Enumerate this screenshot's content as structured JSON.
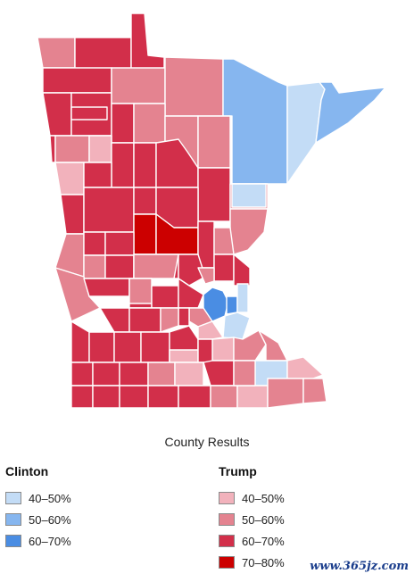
{
  "map": {
    "state": "Minnesota",
    "counties": [
      {
        "id": "c01",
        "color": "#e48390"
      },
      {
        "id": "c02",
        "color": "#d22f4a"
      },
      {
        "id": "c03",
        "color": "#d22f4a"
      },
      {
        "id": "c04",
        "color": "#d22f4a"
      },
      {
        "id": "c05",
        "color": "#d22f4a"
      },
      {
        "id": "c06",
        "color": "#d22f4a"
      },
      {
        "id": "c07",
        "color": "#e48390"
      },
      {
        "id": "c08",
        "color": "#e48390"
      },
      {
        "id": "c09",
        "color": "#86b6ef"
      },
      {
        "id": "c10",
        "color": "#c3dcf6"
      },
      {
        "id": "c11",
        "color": "#86b6ef"
      },
      {
        "id": "c12",
        "color": "#d22f4a"
      },
      {
        "id": "c13",
        "color": "#e48390"
      },
      {
        "id": "c14",
        "color": "#d22f4a"
      },
      {
        "id": "c15",
        "color": "#e48390"
      },
      {
        "id": "c16",
        "color": "#e48390"
      },
      {
        "id": "c17",
        "color": "#d22f4a"
      },
      {
        "id": "c18",
        "color": "#d22f4a"
      },
      {
        "id": "c19",
        "color": "#e48390"
      },
      {
        "id": "c20",
        "color": "#f2b2bc"
      },
      {
        "id": "c21",
        "color": "#d22f4a"
      },
      {
        "id": "c22",
        "color": "#d22f4a"
      },
      {
        "id": "c23",
        "color": "#f2b2bc"
      },
      {
        "id": "c24",
        "color": "#d22f4a"
      },
      {
        "id": "c25",
        "color": "#d22f4a"
      },
      {
        "id": "c26",
        "color": "#e48390"
      },
      {
        "id": "c27",
        "color": "#c3dcf6"
      },
      {
        "id": "c28",
        "color": "#d22f4a"
      },
      {
        "id": "c29",
        "color": "#d22f4a"
      },
      {
        "id": "c30",
        "color": "#d22f4a"
      },
      {
        "id": "c31",
        "color": "#cc0000"
      },
      {
        "id": "c32",
        "color": "#cc0000"
      },
      {
        "id": "c33",
        "color": "#e48390"
      },
      {
        "id": "c34",
        "color": "#d22f4a"
      },
      {
        "id": "c35",
        "color": "#e48390"
      },
      {
        "id": "c36",
        "color": "#e48390"
      },
      {
        "id": "c37",
        "color": "#d22f4a"
      },
      {
        "id": "c38",
        "color": "#d22f4a"
      },
      {
        "id": "c39",
        "color": "#e48390"
      },
      {
        "id": "c40",
        "color": "#d22f4a"
      },
      {
        "id": "c41",
        "color": "#d22f4a"
      },
      {
        "id": "c42",
        "color": "#d22f4a"
      },
      {
        "id": "c43",
        "color": "#d22f4a"
      },
      {
        "id": "c44",
        "color": "#e48390"
      },
      {
        "id": "c45",
        "color": "#e48390"
      },
      {
        "id": "c46",
        "color": "#d22f4a"
      },
      {
        "id": "c47",
        "color": "#e48390"
      },
      {
        "id": "c48",
        "color": "#d22f4a"
      },
      {
        "id": "c49",
        "color": "#d22f4a"
      },
      {
        "id": "c50",
        "color": "#e48390"
      },
      {
        "id": "c51",
        "color": "#4a8de3"
      },
      {
        "id": "c52",
        "color": "#4a8de3"
      },
      {
        "id": "c53",
        "color": "#c3dcf6"
      },
      {
        "id": "c54",
        "color": "#c3dcf6"
      },
      {
        "id": "c55",
        "color": "#d22f4a"
      },
      {
        "id": "c56",
        "color": "#e48390"
      },
      {
        "id": "c57",
        "color": "#d22f4a"
      },
      {
        "id": "c58",
        "color": "#d22f4a"
      },
      {
        "id": "c59",
        "color": "#d22f4a"
      },
      {
        "id": "c60",
        "color": "#d22f4a"
      },
      {
        "id": "c61",
        "color": "#e48390"
      },
      {
        "id": "c62",
        "color": "#f2b2bc"
      },
      {
        "id": "c63",
        "color": "#f2b2bc"
      },
      {
        "id": "c64",
        "color": "#e48390"
      },
      {
        "id": "c65",
        "color": "#e48390"
      },
      {
        "id": "c66",
        "color": "#c3dcf6"
      },
      {
        "id": "c67",
        "color": "#f2b2bc"
      },
      {
        "id": "c68",
        "color": "#d22f4a"
      },
      {
        "id": "c69",
        "color": "#d22f4a"
      },
      {
        "id": "c70",
        "color": "#d22f4a"
      },
      {
        "id": "c71",
        "color": "#d22f4a"
      },
      {
        "id": "c72",
        "color": "#d22f4a"
      },
      {
        "id": "c73",
        "color": "#d22f4a"
      },
      {
        "id": "c74",
        "color": "#d22f4a"
      },
      {
        "id": "c75",
        "color": "#e48390"
      },
      {
        "id": "c76",
        "color": "#f2b2bc"
      },
      {
        "id": "c77",
        "color": "#e48390"
      },
      {
        "id": "c78",
        "color": "#e48390"
      },
      {
        "id": "c79",
        "color": "#e48390"
      },
      {
        "id": "c80",
        "color": "#d22f4a"
      },
      {
        "id": "c81",
        "color": "#e48390"
      },
      {
        "id": "c82",
        "color": "#d22f4a"
      }
    ]
  },
  "title": "County Results",
  "legend": {
    "clinton": {
      "heading": "Clinton",
      "items": [
        {
          "label": "40–50%",
          "color": "#c3dcf6"
        },
        {
          "label": "50–60%",
          "color": "#86b6ef"
        },
        {
          "label": "60–70%",
          "color": "#4a8de3"
        }
      ]
    },
    "trump": {
      "heading": "Trump",
      "items": [
        {
          "label": "40–50%",
          "color": "#f2b2bc"
        },
        {
          "label": "50–60%",
          "color": "#e48390"
        },
        {
          "label": "60–70%",
          "color": "#d22f4a"
        },
        {
          "label": "70–80%",
          "color": "#cc0000"
        }
      ]
    }
  },
  "watermark": "www.365jz.com"
}
